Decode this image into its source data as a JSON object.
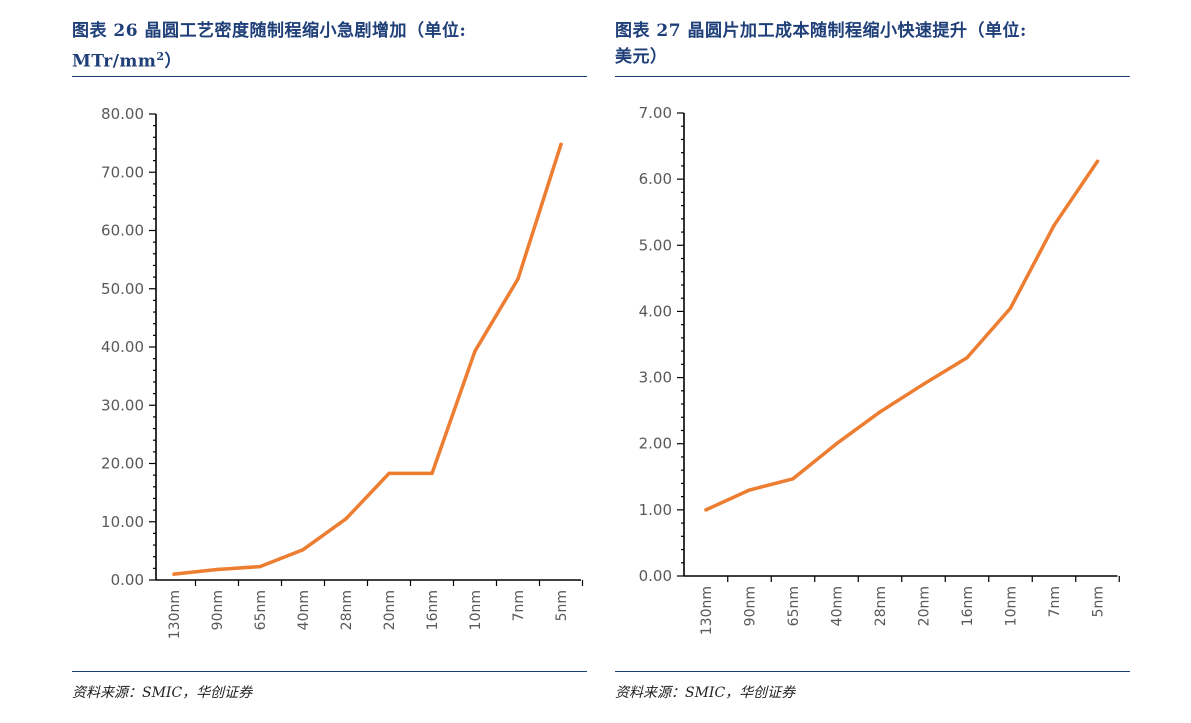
{
  "left": {
    "title_line1": "图表 26   晶圆工艺密度随制程缩小急剧增加（单位:",
    "title_unit": "MTr/mm",
    "title_sup": "2",
    "title_close": "）",
    "source": "资料来源：SMIC，华创证券"
  },
  "right": {
    "title_line1": "图表 27   晶圆片加工成本随制程缩小快速提升（单位:",
    "title_line2": "美元）",
    "source": "资料来源：SMIC，华创证券"
  },
  "colors": {
    "line": "#ed7d31",
    "axis": "#000000",
    "accent": "#1f3f78"
  },
  "chart_data": [
    {
      "type": "line",
      "title": "晶圆工艺密度随制程缩小急剧增加",
      "unit": "MTr/mm2",
      "categories": [
        "130nm",
        "90nm",
        "65nm",
        "40nm",
        "28nm",
        "20nm",
        "16nm",
        "10nm",
        "7nm",
        "5nm"
      ],
      "values": [
        1.0,
        1.8,
        2.3,
        5.2,
        10.5,
        18.3,
        18.3,
        39.3,
        51.7,
        74.8
      ],
      "ylim": [
        0,
        80
      ],
      "yticks": [
        "0.00",
        "10.00",
        "20.00",
        "30.00",
        "40.00",
        "50.00",
        "60.00",
        "70.00",
        "80.00"
      ],
      "xlabel": "",
      "ylabel": ""
    },
    {
      "type": "line",
      "title": "晶圆片加工成本随制程缩小快速提升",
      "unit": "美元",
      "categories": [
        "130nm",
        "90nm",
        "65nm",
        "40nm",
        "28nm",
        "20nm",
        "16nm",
        "10nm",
        "7nm",
        "5nm"
      ],
      "values": [
        1.0,
        1.3,
        1.47,
        2.0,
        2.48,
        2.9,
        3.3,
        4.05,
        5.3,
        6.27
      ],
      "ylim": [
        0,
        7
      ],
      "yticks": [
        "0.00",
        "1.00",
        "2.00",
        "3.00",
        "4.00",
        "5.00",
        "6.00",
        "7.00"
      ],
      "xlabel": "",
      "ylabel": ""
    }
  ]
}
